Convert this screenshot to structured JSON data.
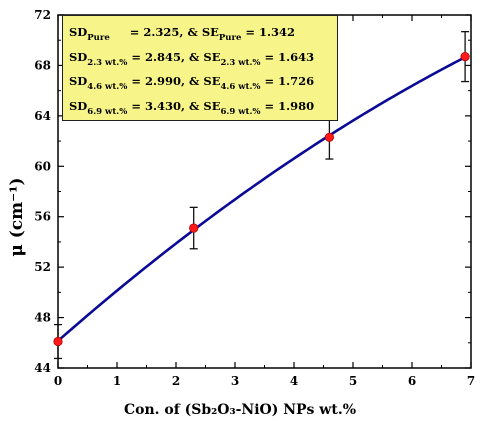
{
  "chart_data": {
    "type": "line",
    "xlabel": "Con. of (Sb₂O₃-NiO) NPs wt.%",
    "ylabel": "μ (cm⁻¹)",
    "xlim": [
      0,
      7
    ],
    "ylim": [
      44,
      72
    ],
    "xticks": [
      "0",
      "1",
      "2",
      "3",
      "4",
      "5",
      "6",
      "7"
    ],
    "yticks": [
      "44",
      "48",
      "52",
      "56",
      "60",
      "64",
      "68",
      "72"
    ],
    "series": [
      {
        "x": [
          0,
          2.3,
          4.6,
          6.9
        ],
        "y": [
          46.1,
          55.1,
          62.3,
          68.7
        ],
        "err": [
          1.342,
          1.643,
          1.726,
          1.98
        ],
        "line_color": "#0a0a96",
        "marker_color": "#ff1a1a"
      }
    ],
    "annotation": {
      "lines": [
        {
          "sd_label": "SD",
          "sd_sub": "Pure",
          "sd_val": "= 2.325,",
          "se_label": "& SE",
          "se_sub": "Pure",
          "se_val": "= 1.342"
        },
        {
          "sd_label": "SD",
          "sd_sub": "2.3 wt.%",
          "sd_val": "= 2.845,",
          "se_label": "& SE",
          "se_sub": "2.3 wt.%",
          "se_val": "= 1.643"
        },
        {
          "sd_label": "SD",
          "sd_sub": "4.6 wt.%",
          "sd_val": "= 2.990,",
          "se_label": "& SE",
          "se_sub": "4.6 wt.%",
          "se_val": "= 1.726"
        },
        {
          "sd_label": "SD",
          "sd_sub": "6.9 wt.%",
          "sd_val": "= 3.430,",
          "se_label": "& SE",
          "se_sub": "6.9 wt.%",
          "se_val": "= 1.980"
        }
      ],
      "background": "#f7f48a"
    }
  }
}
